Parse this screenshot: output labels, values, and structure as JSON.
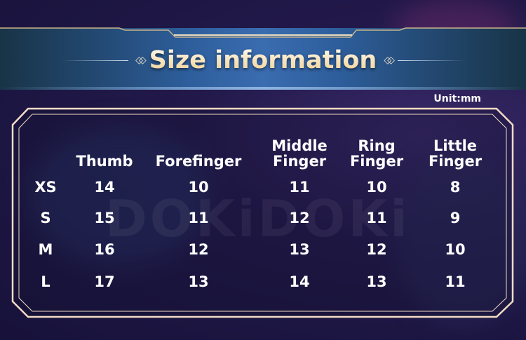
{
  "title": "Size information",
  "unit": "Unit:mm",
  "watermark": "DOKiDOKi",
  "colors": {
    "title_gold": "#f6dfae",
    "banner_blue": "#3a6cb0",
    "frame_cream": "#f3dcc4"
  },
  "table": {
    "headers": [
      {
        "line1": "",
        "line2": "Thumb"
      },
      {
        "line1": "",
        "line2": "Forefinger"
      },
      {
        "line1": "Middle",
        "line2": "Finger"
      },
      {
        "line1": "Ring",
        "line2": "Finger"
      },
      {
        "line1": "Little",
        "line2": "Finger"
      }
    ],
    "rows": [
      {
        "size": "XS",
        "values": [
          "14",
          "10",
          "11",
          "10",
          "8"
        ]
      },
      {
        "size": "S",
        "values": [
          "15",
          "11",
          "12",
          "11",
          "9"
        ]
      },
      {
        "size": "M",
        "values": [
          "16",
          "12",
          "13",
          "12",
          "10"
        ]
      },
      {
        "size": "L",
        "values": [
          "17",
          "13",
          "14",
          "13",
          "11"
        ]
      }
    ]
  }
}
